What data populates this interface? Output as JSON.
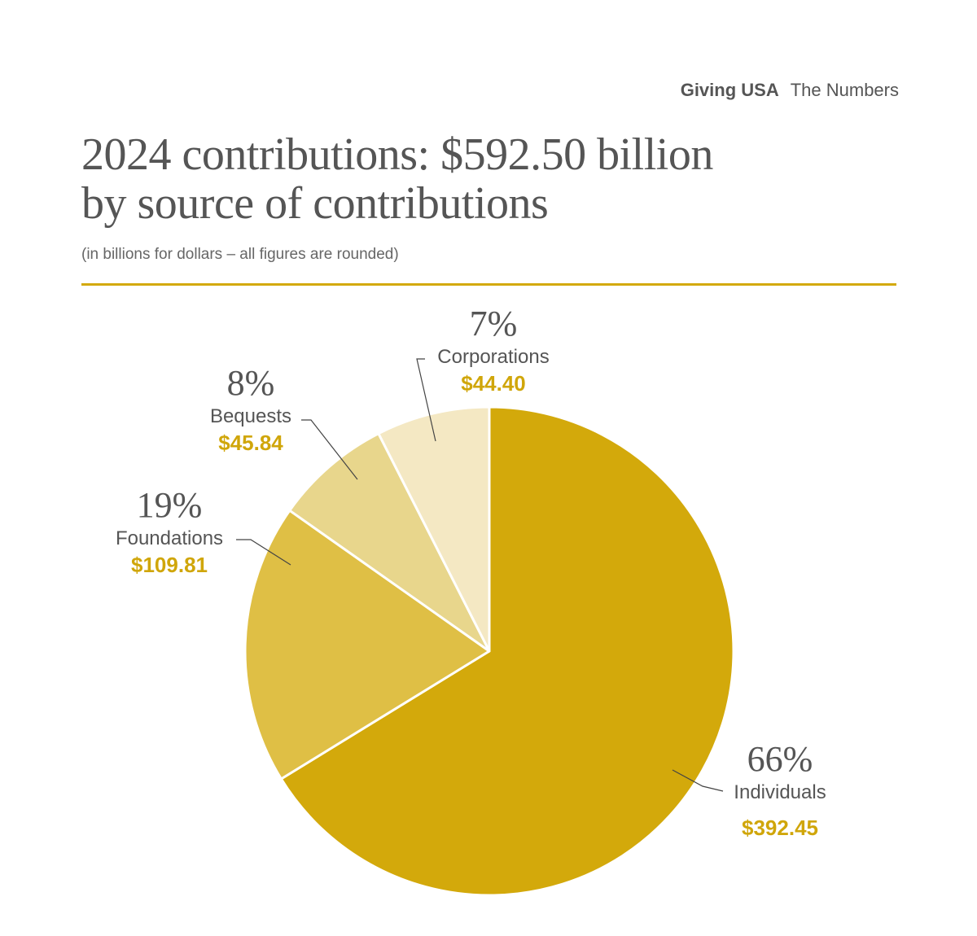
{
  "header": {
    "brand_bold": "Giving USA",
    "brand_light": "The Numbers"
  },
  "title_line1": "2024 contributions: $592.50 billion",
  "title_line2": "by source of contributions",
  "subtitle": "(in billions for dollars – all figures are rounded)",
  "colors": {
    "accent": "#d3a90b",
    "individuals": "#d3a90b",
    "foundations": "#dfbf45",
    "bequests": "#e8d68c",
    "corporations": "#f4e8c3"
  },
  "chart_data": {
    "type": "pie",
    "title": "2024 contributions: $592.50 billion",
    "subtitle": "by source of contributions",
    "total": 592.5,
    "slices": [
      {
        "name": "Individuals",
        "value": 392.45,
        "percent_label": "66%",
        "value_label": "$392.45",
        "color": "#d3a90b"
      },
      {
        "name": "Foundations",
        "value": 109.81,
        "percent_label": "19%",
        "value_label": "$109.81",
        "color": "#dfbf45"
      },
      {
        "name": "Bequests",
        "value": 45.84,
        "percent_label": "8%",
        "value_label": "$45.84",
        "color": "#e8d68c"
      },
      {
        "name": "Corporations",
        "value": 44.4,
        "percent_label": "7%",
        "value_label": "$44.40",
        "color": "#f4e8c3"
      }
    ]
  }
}
